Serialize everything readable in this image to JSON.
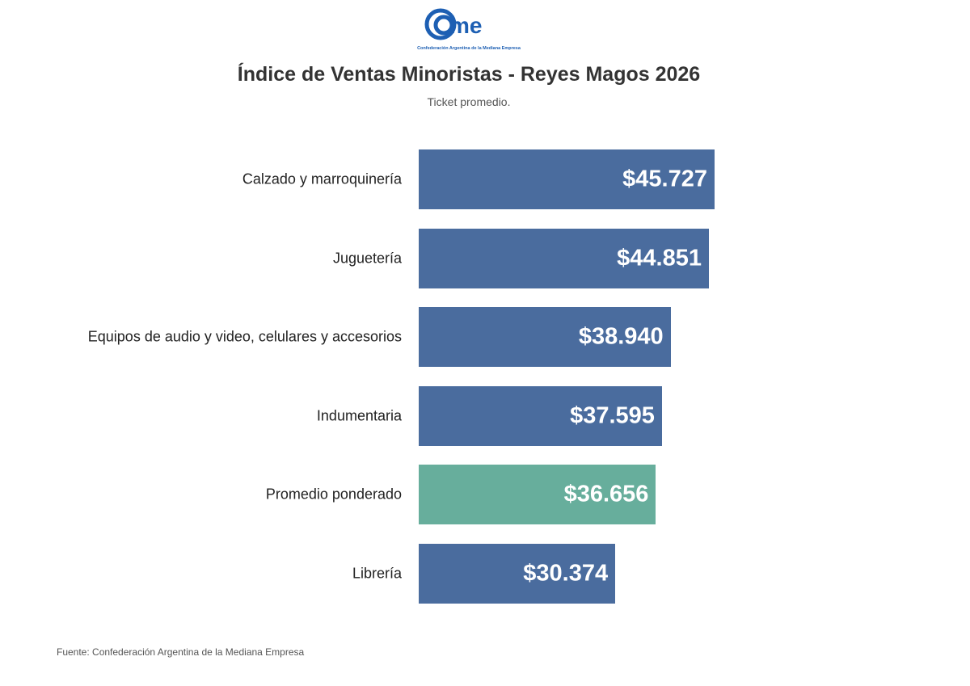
{
  "logo": {
    "text": "cme",
    "tagline": "Confederación Argentina de la Mediana Empresa",
    "color": "#1d5fb3"
  },
  "chart_data": {
    "type": "bar",
    "orientation": "horizontal",
    "title": "Índice de Ventas Minoristas - Reyes Magos 2026",
    "subtitle": "Ticket promedio.",
    "categories": [
      "Calzado y marroquinería",
      "Juguetería",
      "Equipos de audio y video, celulares y accesorios",
      "Indumentaria",
      "Promedio ponderado",
      "Librería"
    ],
    "values": [
      45727,
      44851,
      38940,
      37595,
      36656,
      30374
    ],
    "labels": [
      "$45.727",
      "$44.851",
      "$38.940",
      "$37.595",
      "$36.656",
      "$30.374"
    ],
    "colors": [
      "#4a6c9e",
      "#4a6c9e",
      "#4a6c9e",
      "#4a6c9e",
      "#67ae9c",
      "#4a6c9e"
    ],
    "xlim": [
      0,
      45727
    ],
    "grid": false,
    "source": "Fuente: Confederación Argentina de la Mediana Empresa"
  }
}
